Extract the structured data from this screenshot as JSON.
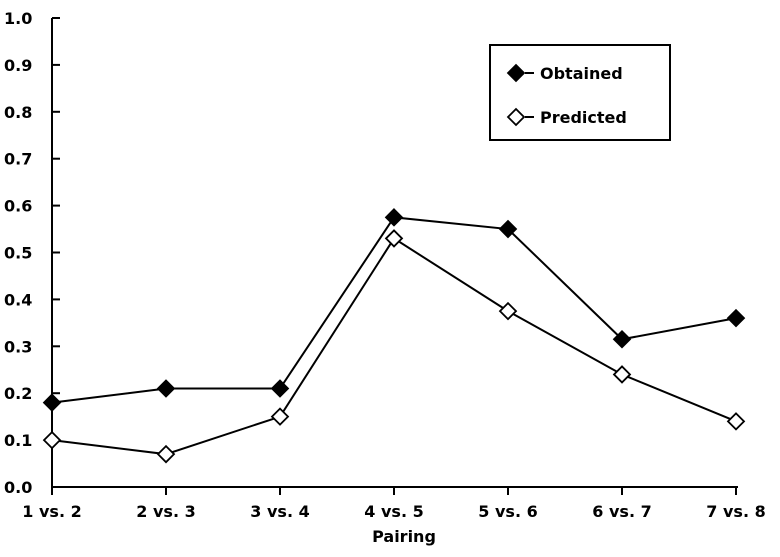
{
  "chart_data": {
    "type": "line",
    "title": "",
    "xlabel": "Pairing",
    "ylabel": "",
    "categories": [
      "1 vs. 2",
      "2 vs. 3",
      "3 vs. 4",
      "4 vs. 5",
      "5 vs. 6",
      "6 vs. 7",
      "7 vs. 8"
    ],
    "ylim": [
      0.0,
      1.0
    ],
    "yticks": [
      "0.0",
      "0.1",
      "0.2",
      "0.3",
      "0.4",
      "0.5",
      "0.6",
      "0.7",
      "0.8",
      "0.9",
      "1.0"
    ],
    "grid": false,
    "legend_position": "top-right",
    "series": [
      {
        "name": "Obtained",
        "marker": "filled-diamond",
        "color": "#000000",
        "values": [
          0.18,
          0.21,
          0.21,
          0.575,
          0.55,
          0.315,
          0.36
        ]
      },
      {
        "name": "Predicted",
        "marker": "open-diamond",
        "color": "#000000",
        "values": [
          0.1,
          0.07,
          0.15,
          0.53,
          0.375,
          0.24,
          0.14
        ]
      }
    ]
  }
}
